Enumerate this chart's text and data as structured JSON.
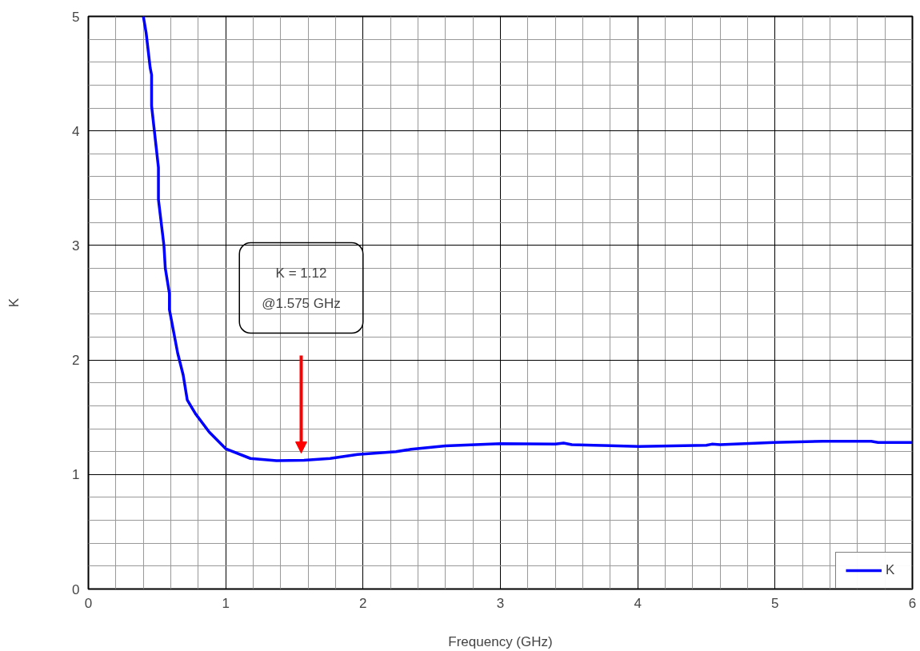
{
  "chart_data": {
    "type": "line",
    "xlabel": "Frequency (GHz)",
    "ylabel": "K",
    "xlim": [
      0,
      6
    ],
    "ylim": [
      0,
      5
    ],
    "xticks": [
      0,
      1,
      2,
      3,
      4,
      5,
      6
    ],
    "yticks": [
      0,
      1,
      2,
      3,
      4,
      5
    ],
    "grid": true,
    "legend": "bottom right",
    "marker": "none",
    "line_style": "solid",
    "annotations": [
      "K = 1.12\n@1.575 GHz"
    ],
    "series": [
      {
        "name": "K",
        "color": "#0000ff",
        "x": [
          0.4,
          0.42,
          0.45,
          0.46,
          0.46,
          0.51,
          0.51,
          0.55,
          0.56,
          0.59,
          0.59,
          0.65,
          0.69,
          0.72,
          0.78,
          0.88,
          1.0,
          1.18,
          1.37,
          1.57,
          1.76,
          1.96,
          2.24,
          2.35,
          2.6,
          3.0,
          3.4,
          3.46,
          3.52,
          3.68,
          4.01,
          4.5,
          4.54,
          4.6,
          4.99,
          5.35,
          5.7,
          5.75,
          5.8,
          5.96,
          6.0
        ],
        "values": [
          5.0,
          4.86,
          4.55,
          4.49,
          4.22,
          3.68,
          3.4,
          3.0,
          2.8,
          2.58,
          2.44,
          2.06,
          1.87,
          1.65,
          1.53,
          1.37,
          1.225,
          1.14,
          1.12,
          1.125,
          1.14,
          1.175,
          1.2,
          1.22,
          1.25,
          1.27,
          1.265,
          1.275,
          1.26,
          1.255,
          1.245,
          1.255,
          1.265,
          1.26,
          1.28,
          1.29,
          1.29,
          1.28,
          1.28,
          1.28,
          1.28
        ]
      }
    ]
  }
}
